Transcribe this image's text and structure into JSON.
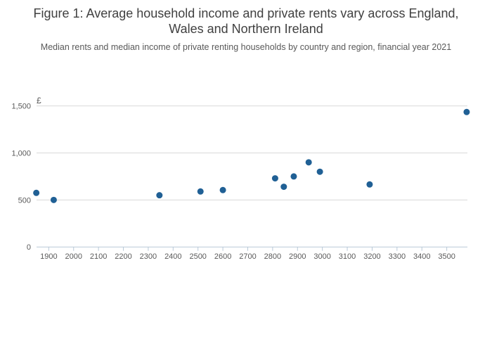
{
  "header": {
    "title_line1": "Figure 1: Average household income and private rents vary across England,",
    "title_line2": "Wales and Northern Ireland",
    "subtitle": "Median rents and median income of private renting households by country and region, financial year 2021"
  },
  "chart_data": {
    "type": "scatter",
    "title": "Figure 1: Average household income and private rents vary across England, Wales and Northern Ireland",
    "subtitle": "Median rents and median income of private renting households by country and region, financial year 2021",
    "xlabel": "",
    "ylabel": "£",
    "unit_label": "£",
    "grid": "horizontal",
    "legend": "none",
    "xlim": [
      1851,
      3583
    ],
    "ylim": [
      0,
      1500
    ],
    "x_ticks": [
      1900,
      2000,
      2100,
      2200,
      2300,
      2400,
      2500,
      2600,
      2700,
      2800,
      2900,
      3000,
      3100,
      3200,
      3300,
      3400,
      3500
    ],
    "y_ticks": [
      0,
      500,
      1000,
      1500
    ],
    "y_tick_labels": [
      "0",
      "500",
      "1,000",
      "1,500"
    ],
    "points": [
      {
        "x": 1850,
        "y": 575
      },
      {
        "x": 1920,
        "y": 500
      },
      {
        "x": 2345,
        "y": 550
      },
      {
        "x": 2510,
        "y": 590
      },
      {
        "x": 2600,
        "y": 605
      },
      {
        "x": 2810,
        "y": 730
      },
      {
        "x": 2845,
        "y": 640
      },
      {
        "x": 2885,
        "y": 750
      },
      {
        "x": 2945,
        "y": 900
      },
      {
        "x": 2990,
        "y": 800
      },
      {
        "x": 3190,
        "y": 665
      },
      {
        "x": 3580,
        "y": 1435
      }
    ],
    "colors": {
      "point": "#206095",
      "gridline": "#d9d9d9",
      "axis_line": "#b9c9d8",
      "title_text": "#404040",
      "subtitle_text": "#595959",
      "tick_label": "#595959"
    }
  }
}
